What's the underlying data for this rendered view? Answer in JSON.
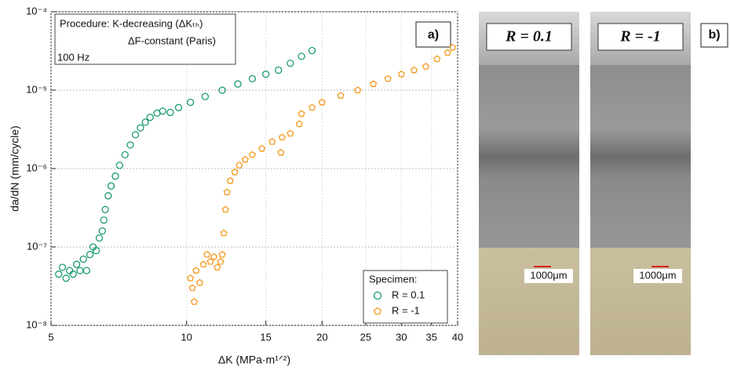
{
  "chart_data": {
    "type": "scatter",
    "xlabel": "ΔK (MPa·m¹ᐟ²)",
    "ylabel": "da/dN (mm/cycle)",
    "annotations": [
      "Procedure: K-decreasing (ΔKₜₕ)",
      "ΔF-constant (Paris)",
      "100 Hz",
      "a)"
    ],
    "legend_title": "Specimen:",
    "legend": "lower right",
    "xscale": "log",
    "yscale": "log",
    "grid": true,
    "xlim": [
      5,
      40
    ],
    "xticks": [
      5,
      10,
      15,
      20,
      25,
      30,
      35,
      40
    ],
    "ylim": [
      1e-08,
      0.0001
    ],
    "yticks": [
      {
        "value": 1e-08,
        "label": "10⁻⁸"
      },
      {
        "value": 1e-07,
        "label": "10⁻⁷"
      },
      {
        "value": 1e-06,
        "label": "10⁻⁶"
      },
      {
        "value": 1e-05,
        "label": "10⁻⁵"
      },
      {
        "value": 0.0001,
        "label": "10⁻⁴"
      }
    ],
    "series": [
      {
        "name": "R = 0.1",
        "color": "#1a9b6c",
        "marker": "circle",
        "x": [
          5.2,
          5.3,
          5.4,
          5.5,
          5.6,
          5.7,
          5.8,
          5.9,
          6.0,
          6.1,
          6.2,
          6.3,
          6.4,
          6.5,
          6.55,
          6.6,
          6.7,
          6.8,
          6.95,
          7.1,
          7.3,
          7.5,
          7.7,
          7.9,
          8.1,
          8.3,
          8.6,
          8.85,
          9.2,
          9.6,
          10.2,
          11,
          12,
          13,
          14,
          15,
          16,
          17,
          18,
          19
        ],
        "values": [
          4.5e-08,
          5.5e-08,
          4e-08,
          5e-08,
          4.5e-08,
          6e-08,
          5e-08,
          7e-08,
          5e-08,
          8e-08,
          1e-07,
          9e-08,
          1.3e-07,
          1.6e-07,
          2.2e-07,
          3e-07,
          4.5e-07,
          6e-07,
          8e-07,
          1.1e-06,
          1.5e-06,
          2e-06,
          2.7e-06,
          3.3e-06,
          3.9e-06,
          4.5e-06,
          5.1e-06,
          5.4e-06,
          5.2e-06,
          6e-06,
          7e-06,
          8.3e-06,
          1e-05,
          1.2e-05,
          1.4e-05,
          1.6e-05,
          1.8e-05,
          2.2e-05,
          2.7e-05,
          3.2e-05
        ]
      },
      {
        "name": "R = -1",
        "color": "#f39a1e",
        "marker": "pentagon",
        "x": [
          10.2,
          10.3,
          10.4,
          10.5,
          10.7,
          10.9,
          11.1,
          11.3,
          11.5,
          11.7,
          11.9,
          12.0,
          12.1,
          12.2,
          12.3,
          12.5,
          12.8,
          13.1,
          13.5,
          14,
          14.7,
          15.5,
          16.2,
          16.3,
          17,
          17.8,
          18,
          19,
          20,
          22,
          24,
          26,
          28,
          30,
          32,
          34,
          36,
          38,
          39
        ],
        "values": [
          4e-08,
          3e-08,
          2e-08,
          5e-08,
          3.5e-08,
          6e-08,
          8e-08,
          6.5e-08,
          7.5e-08,
          5.5e-08,
          6.5e-08,
          8e-08,
          1.5e-07,
          3e-07,
          5e-07,
          7e-07,
          9e-07,
          1.1e-06,
          1.3e-06,
          1.5e-06,
          1.8e-06,
          2.2e-06,
          1.6e-06,
          2.5e-06,
          2.8e-06,
          3.7e-06,
          5e-06,
          6e-06,
          7e-06,
          8.5e-06,
          1e-05,
          1.2e-05,
          1.4e-05,
          1.6e-05,
          1.8e-05,
          2e-05,
          2.5e-05,
          3e-05,
          3.5e-05
        ]
      }
    ]
  },
  "photos": {
    "label": "b)",
    "items": [
      {
        "title": "R = 0.1",
        "scale_bar": "1000μm"
      },
      {
        "title": "R = -1",
        "scale_bar": "1000μm"
      }
    ]
  }
}
